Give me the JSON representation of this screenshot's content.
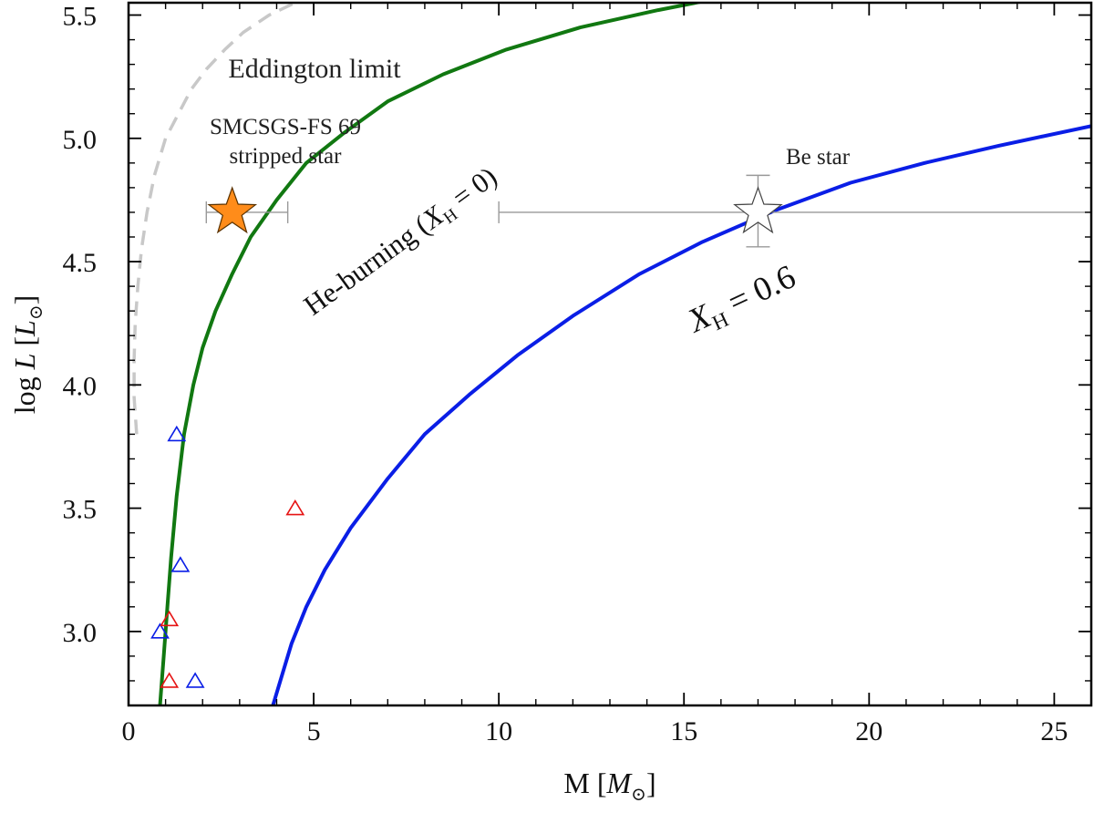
{
  "chart_data": {
    "type": "scatter",
    "title": "",
    "xlabel": "M [M⊙]",
    "ylabel": "log L [L⊙]",
    "xlim": [
      0,
      26
    ],
    "ylim": [
      2.7,
      5.55
    ],
    "xticks": [
      "0",
      "5",
      "10",
      "15",
      "20",
      "25"
    ],
    "yticks": [
      "3.0",
      "3.5",
      "4.0",
      "4.5",
      "5.0",
      "5.5"
    ],
    "grid": false,
    "legend": "none",
    "series": [
      {
        "name": "Eddington limit",
        "kind": "line",
        "style": "dashed",
        "color": "#c8c8c8",
        "x": [
          0.22,
          0.15,
          0.15,
          0.18,
          0.25,
          0.35,
          0.5,
          0.7,
          1.0,
          1.35,
          1.7,
          2.1,
          2.6,
          3.1,
          3.8,
          4.5,
          5.0
        ],
        "y": [
          3.8,
          3.95,
          4.1,
          4.25,
          4.4,
          4.55,
          4.7,
          4.85,
          5.0,
          5.1,
          5.2,
          5.28,
          5.36,
          5.43,
          5.5,
          5.55,
          5.57
        ]
      },
      {
        "name": "He-burning (X_H = 0)",
        "kind": "line",
        "color": "#117811",
        "x": [
          0.85,
          0.95,
          1.05,
          1.15,
          1.3,
          1.5,
          1.75,
          2.0,
          2.35,
          2.8,
          3.3,
          4.0,
          4.8,
          5.8,
          7.0,
          8.5,
          10.2,
          12.2,
          14.3,
          16.0
        ],
        "y": [
          2.7,
          2.9,
          3.1,
          3.3,
          3.55,
          3.8,
          4.0,
          4.15,
          4.3,
          4.45,
          4.6,
          4.75,
          4.9,
          5.02,
          5.15,
          5.26,
          5.36,
          5.45,
          5.52,
          5.57
        ]
      },
      {
        "name": "X_H = 0.6",
        "kind": "line",
        "color": "#0a1ee6",
        "x": [
          3.9,
          4.1,
          4.4,
          4.8,
          5.3,
          6.0,
          7.0,
          8.0,
          9.2,
          10.5,
          12.0,
          13.8,
          15.5,
          17.5,
          19.5,
          21.5,
          23.5,
          26.0
        ],
        "y": [
          2.7,
          2.8,
          2.95,
          3.1,
          3.25,
          3.42,
          3.62,
          3.8,
          3.96,
          4.12,
          4.28,
          4.45,
          4.58,
          4.71,
          4.82,
          4.9,
          4.97,
          5.05
        ]
      },
      {
        "name": "blue triangles",
        "kind": "triangle",
        "color": "#0a1ee6",
        "x": [
          1.3,
          1.4,
          0.85,
          1.8
        ],
        "y": [
          3.8,
          3.27,
          3.0,
          2.8
        ]
      },
      {
        "name": "red triangles",
        "kind": "triangle",
        "color": "#e61414",
        "x": [
          4.5,
          1.1,
          1.1
        ],
        "y": [
          3.5,
          3.05,
          2.8
        ]
      },
      {
        "name": "SMCSGS-FS 69 stripped star",
        "kind": "star",
        "filled": true,
        "color": "#ff8c1a",
        "x": [
          2.8
        ],
        "y": [
          4.7
        ],
        "xerr": [
          [
            2.1,
            4.3
          ]
        ]
      },
      {
        "name": "Be star",
        "kind": "star",
        "filled": false,
        "color": "#ffffff",
        "x": [
          17.0
        ],
        "y": [
          4.7
        ],
        "xerr": [
          [
            10.0,
            26.0
          ]
        ],
        "yerr": [
          [
            4.56,
            4.85
          ]
        ]
      }
    ],
    "annotations": [
      {
        "id": "eddington",
        "text": "Eddington limit",
        "x": 5.1,
        "y": 5.3
      },
      {
        "id": "smc-line1",
        "text": "SMCSGS-FS 69",
        "x": 4.4,
        "y": 5.0
      },
      {
        "id": "smc-line2",
        "text": "stripped star",
        "x": 4.4,
        "y": 4.87
      },
      {
        "id": "be",
        "text": "Be star",
        "x": 19.0,
        "y": 4.85
      }
    ]
  }
}
